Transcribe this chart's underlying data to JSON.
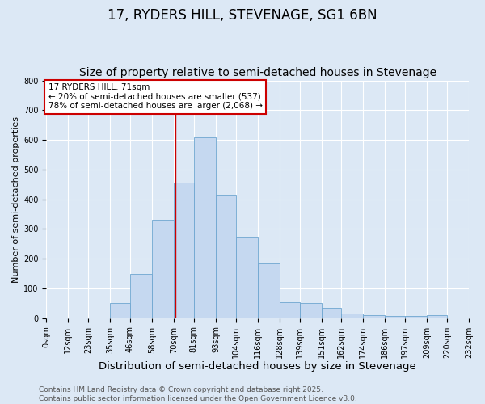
{
  "title": "17, RYDERS HILL, STEVENAGE, SG1 6BN",
  "subtitle": "Size of property relative to semi-detached houses in Stevenage",
  "xlabel": "Distribution of semi-detached houses by size in Stevenage",
  "ylabel": "Number of semi-detached properties",
  "bin_edges": [
    0,
    12,
    23,
    35,
    46,
    58,
    70,
    81,
    93,
    104,
    116,
    128,
    139,
    151,
    162,
    174,
    186,
    197,
    209,
    220,
    232
  ],
  "bin_labels": [
    "0sqm",
    "12sqm",
    "23sqm",
    "35sqm",
    "46sqm",
    "58sqm",
    "70sqm",
    "81sqm",
    "93sqm",
    "104sqm",
    "116sqm",
    "128sqm",
    "139sqm",
    "151sqm",
    "162sqm",
    "174sqm",
    "186sqm",
    "197sqm",
    "209sqm",
    "220sqm",
    "232sqm"
  ],
  "bar_heights": [
    0,
    0,
    3,
    50,
    150,
    330,
    455,
    608,
    415,
    275,
    185,
    55,
    50,
    35,
    15,
    10,
    7,
    7,
    10,
    0
  ],
  "bar_color": "#c5d8f0",
  "bar_edge_color": "#6ea6d0",
  "property_size": 71,
  "vline_color": "#cc0000",
  "annotation_line1": "17 RYDERS HILL: 71sqm",
  "annotation_line2": "← 20% of semi-detached houses are smaller (537)",
  "annotation_line3": "78% of semi-detached houses are larger (2,068) →",
  "annotation_box_color": "#ffffff",
  "annotation_box_edge": "#cc0000",
  "ylim": [
    0,
    800
  ],
  "yticks": [
    0,
    100,
    200,
    300,
    400,
    500,
    600,
    700,
    800
  ],
  "plot_bg_color": "#dce8f5",
  "figure_bg_color": "#dce8f5",
  "footer_text": "Contains HM Land Registry data © Crown copyright and database right 2025.\nContains public sector information licensed under the Open Government Licence v3.0.",
  "grid_color": "#ffffff",
  "title_fontsize": 12,
  "subtitle_fontsize": 10,
  "xlabel_fontsize": 9.5,
  "ylabel_fontsize": 8,
  "tick_fontsize": 7,
  "annotation_fontsize": 7.5,
  "footer_fontsize": 6.5
}
